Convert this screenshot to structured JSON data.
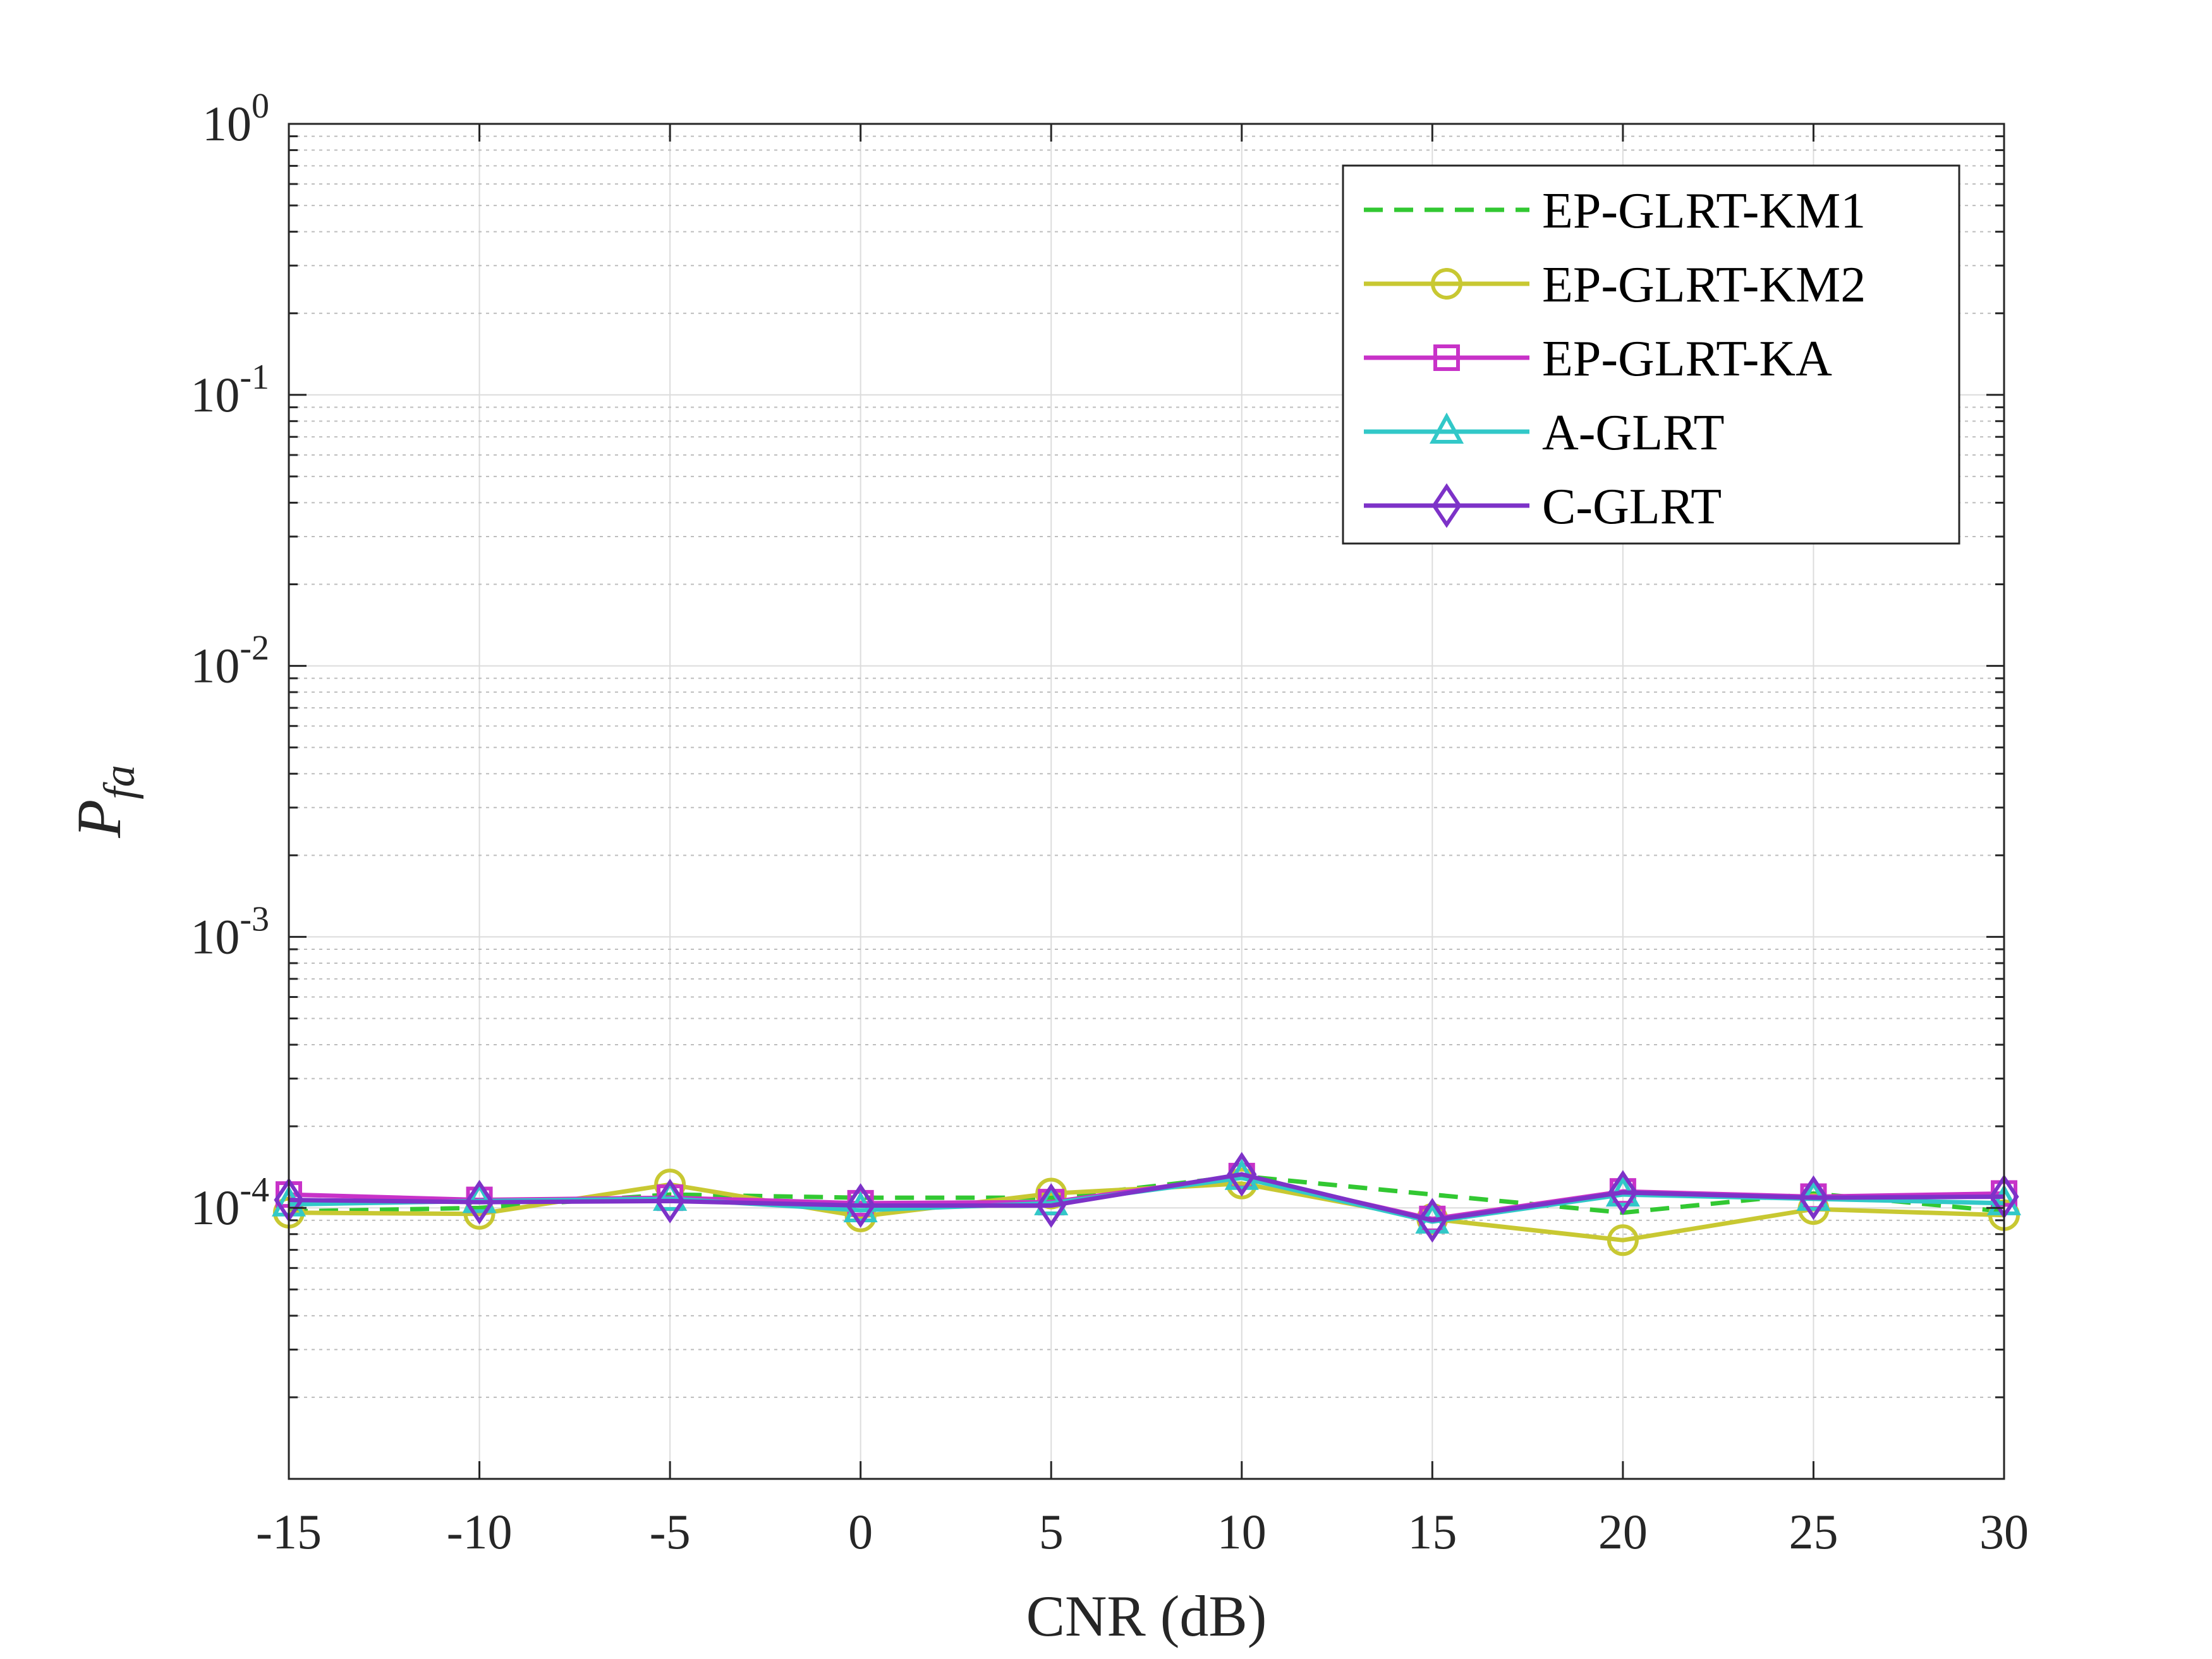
{
  "chart_data": {
    "type": "line",
    "xlabel": "CNR (dB)",
    "ylabel": {
      "base": "P",
      "subscript": "fa"
    },
    "x": [
      -15,
      -10,
      -5,
      0,
      5,
      10,
      15,
      20,
      25,
      30
    ],
    "x_tick_labels": [
      "-15",
      "-10",
      "-5",
      "0",
      "5",
      "10",
      "15",
      "20",
      "25",
      "30"
    ],
    "xlim": [
      -15,
      30
    ],
    "yscale": "log",
    "ylim": [
      1e-05,
      1
    ],
    "y_ticks": [
      {
        "value": 1,
        "base": "10",
        "exp": "0"
      },
      {
        "value": 0.1,
        "base": "10",
        "exp": "-1"
      },
      {
        "value": 0.01,
        "base": "10",
        "exp": "-2"
      },
      {
        "value": 0.001,
        "base": "10",
        "exp": "-3"
      },
      {
        "value": 0.0001,
        "base": "10",
        "exp": "-4"
      }
    ],
    "grid": true,
    "minor_grid": true,
    "legend_position": "top-right",
    "series": [
      {
        "name": "EP-GLRT-KM1",
        "color": "#32c832",
        "dash": "dashed",
        "marker": "none",
        "values": [
          9.7e-05,
          0.0001,
          0.000112,
          0.000109,
          0.000109,
          0.000131,
          0.000112,
          9.6e-05,
          0.000113,
          9.7e-05
        ]
      },
      {
        "name": "EP-GLRT-KM2",
        "color": "#c8c832",
        "dash": "solid",
        "marker": "circle",
        "values": [
          9.6e-05,
          9.5e-05,
          0.000122,
          9.3e-05,
          0.000113,
          0.000123,
          9.1e-05,
          7.6e-05,
          9.9e-05,
          9.4e-05
        ]
      },
      {
        "name": "EP-GLRT-KA",
        "color": "#c832c8",
        "dash": "solid",
        "marker": "square",
        "values": [
          0.000112,
          0.000107,
          0.000109,
          0.000104,
          0.000105,
          0.000131,
          9.1e-05,
          0.000115,
          0.00011,
          0.000113
        ]
      },
      {
        "name": "A-GLRT",
        "color": "#32c8c8",
        "dash": "solid",
        "marker": "triangle",
        "values": [
          0.000103,
          0.000106,
          0.000108,
          9.8e-05,
          0.000104,
          0.000129,
          8.9e-05,
          0.000112,
          0.000108,
          0.000104
        ]
      },
      {
        "name": "C-GLRT",
        "color": "#7d32c8",
        "dash": "solid",
        "marker": "diamond",
        "values": [
          0.000107,
          0.000105,
          0.000106,
          0.000102,
          0.000102,
          0.000133,
          9e-05,
          0.000114,
          0.000109,
          0.00011
        ]
      }
    ]
  }
}
